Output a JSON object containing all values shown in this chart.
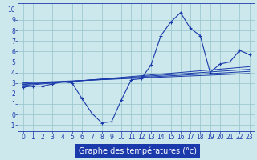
{
  "xlabel": "Graphe des températures (°c)",
  "background_color": "#cce8ec",
  "grid_color": "#9dc8d0",
  "line_color": "#1a3aab",
  "xlabel_bg": "#1a3aab",
  "xlabel_fg": "#ffffff",
  "x_ticks": [
    0,
    1,
    2,
    3,
    4,
    5,
    6,
    7,
    8,
    9,
    10,
    11,
    12,
    13,
    14,
    15,
    16,
    17,
    18,
    19,
    20,
    21,
    22,
    23
  ],
  "y_ticks": [
    -1,
    0,
    1,
    2,
    3,
    4,
    5,
    6,
    7,
    8,
    9,
    10
  ],
  "xlim": [
    -0.5,
    23.5
  ],
  "ylim": [
    -1.6,
    10.6
  ],
  "line1_x": [
    0,
    1,
    2,
    3,
    4,
    5,
    6,
    7,
    8,
    9,
    10,
    11,
    12,
    13,
    14,
    15,
    16,
    17,
    18,
    19,
    20,
    21,
    22,
    23
  ],
  "line1_y": [
    2.6,
    2.7,
    2.7,
    2.9,
    3.1,
    3.0,
    1.5,
    0.1,
    -0.8,
    -0.7,
    1.4,
    3.3,
    3.4,
    4.7,
    7.5,
    8.8,
    9.7,
    8.2,
    7.5,
    4.0,
    4.8,
    5.0,
    6.1,
    5.7
  ],
  "trend1_y": [
    3.0,
    3.9
  ],
  "trend2_y": [
    2.9,
    4.1
  ],
  "trend3_y": [
    2.85,
    4.3
  ],
  "trend4_y": [
    2.75,
    4.55
  ],
  "xlabel_fontsize": 7,
  "tick_fontsize": 5.5
}
